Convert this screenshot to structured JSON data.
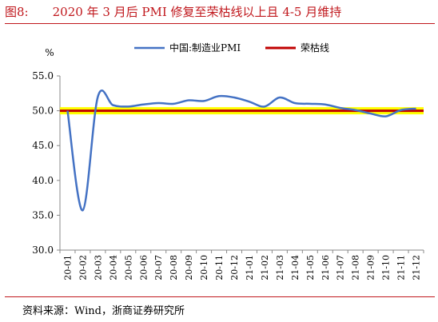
{
  "figure": {
    "label": "图8:",
    "title": "2020 年 3 月后 PMI 修复至荣枯线以上且 4-5 月维持",
    "source": "资料来源：Wind，浙商证券研究所"
  },
  "chart_data": {
    "type": "line",
    "ylabel": "%",
    "ylim": [
      30.0,
      55.0
    ],
    "yticks": [
      "30.0",
      "35.0",
      "40.0",
      "45.0",
      "50.0",
      "55.0"
    ],
    "grid": false,
    "legend_position": "top",
    "categories": [
      "20-01",
      "20-02",
      "20-03",
      "20-04",
      "20-05",
      "20-06",
      "20-07",
      "20-08",
      "20-09",
      "20-10",
      "20-11",
      "20-12",
      "21-01",
      "21-02",
      "21-03",
      "21-04",
      "21-05",
      "21-06",
      "21-07",
      "21-08",
      "21-09",
      "21-10",
      "21-11",
      "21-12"
    ],
    "series": [
      {
        "name": "中国:制造业PMI",
        "color": "#4472c4",
        "values": [
          50.0,
          35.7,
          52.0,
          50.8,
          50.6,
          50.9,
          51.1,
          51.0,
          51.5,
          51.4,
          52.1,
          51.9,
          51.3,
          50.6,
          51.9,
          51.1,
          51.0,
          50.9,
          50.4,
          50.1,
          49.6,
          49.2,
          50.1,
          50.3
        ]
      },
      {
        "name": "荣枯线",
        "color": "#c00000",
        "values": [
          50,
          50,
          50,
          50,
          50,
          50,
          50,
          50,
          50,
          50,
          50,
          50,
          50,
          50,
          50,
          50,
          50,
          50,
          50,
          50,
          50,
          50,
          50,
          50
        ]
      }
    ],
    "band_color": "#ffff00"
  }
}
